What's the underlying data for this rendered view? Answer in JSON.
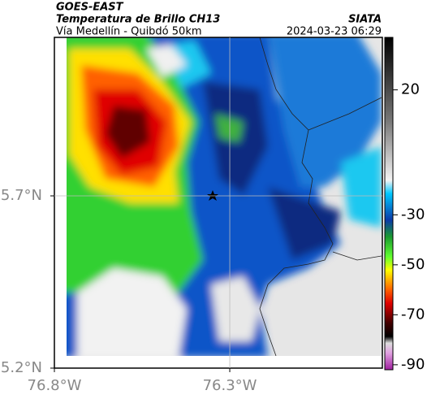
{
  "header": {
    "satellite": "GOES-EAST",
    "product": "Temperatura de Brillo CH13",
    "route": "Vía Medellín - Quibdó 50km",
    "source": "SIATA",
    "timestamp": "2024-03-23 06:29"
  },
  "map": {
    "xlim": [
      -76.8,
      -75.865
    ],
    "ylim": [
      5.2,
      6.16
    ],
    "xticks": [
      {
        "value": -76.8,
        "label": "76.8°W"
      },
      {
        "value": -76.3,
        "label": "76.3°W"
      }
    ],
    "yticks": [
      {
        "value": 5.2,
        "label": "5.2°N"
      },
      {
        "value": 5.7,
        "label": "5.7°N"
      }
    ],
    "grid": true
  },
  "colorbar": {
    "lim": [
      -92,
      41
    ],
    "ticks": [
      20,
      -30,
      -50,
      -70,
      -90
    ]
  }
}
